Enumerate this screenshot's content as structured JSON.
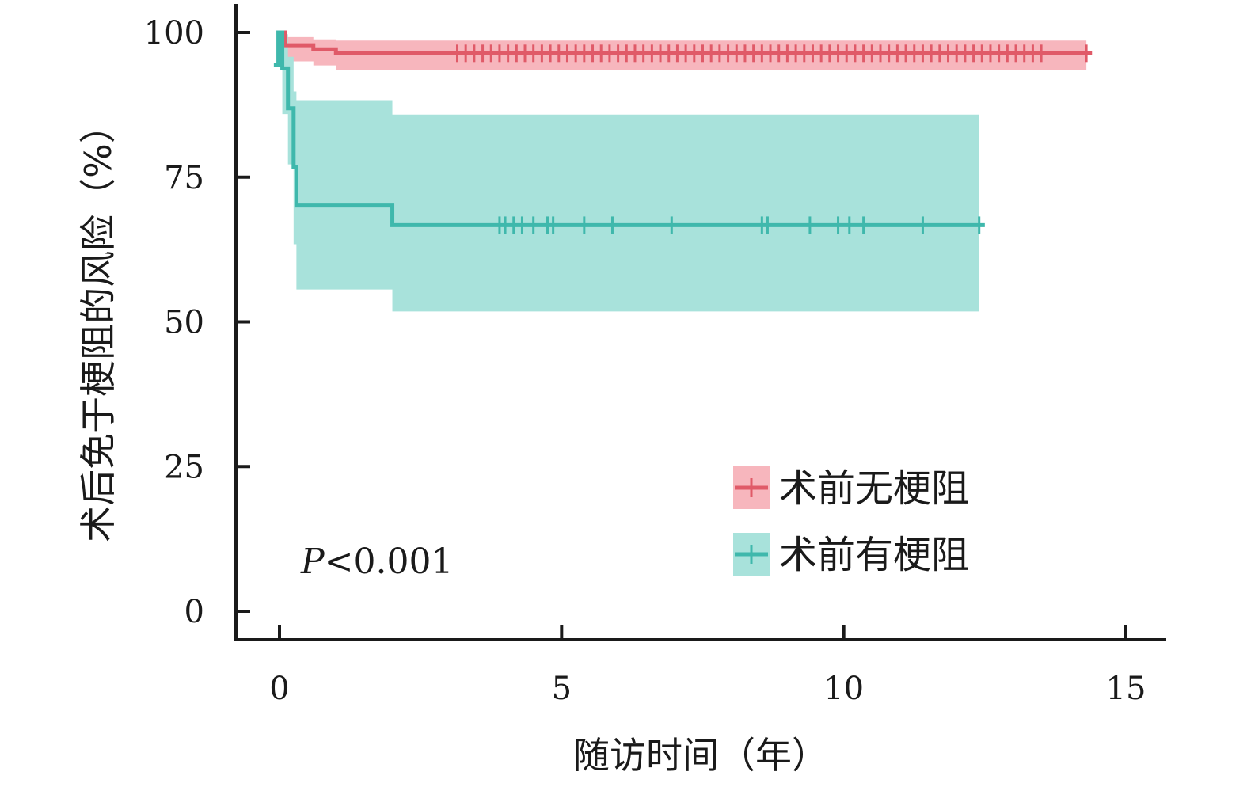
{
  "chart_data": {
    "type": "line",
    "subtype": "kaplan-meier",
    "title": "",
    "xlabel": "随访时间（年）",
    "ylabel": "术后免于梗阻的风险（%）",
    "xlim": [
      -0.7,
      15.7
    ],
    "ylim": [
      -5,
      105
    ],
    "xticks": [
      0,
      5,
      10,
      15
    ],
    "yticks": [
      0,
      25,
      50,
      75,
      100
    ],
    "grid": false,
    "legend_position": "bottom-right",
    "annotation": {
      "italic": "P",
      "rest": "<0.001"
    },
    "series": [
      {
        "name": "术前无梗阻",
        "line_color": "#e05a68",
        "band_color": "#f7b6bd",
        "steps": [
          [
            -0.05,
            100
          ],
          [
            0.1,
            97.8
          ],
          [
            0.6,
            97.1
          ],
          [
            1.0,
            96.4
          ],
          [
            14.4,
            96.4
          ]
        ],
        "ci": [
          [
            -0.05,
            100,
            100
          ],
          [
            0.1,
            95.0,
            99.2
          ],
          [
            0.6,
            94.3,
            98.8
          ],
          [
            1.0,
            93.5,
            98.6
          ],
          [
            14.3,
            93.5,
            98.6
          ]
        ],
        "censor_x": [
          3.15,
          3.3,
          3.45,
          3.6,
          3.75,
          3.9,
          4.05,
          4.2,
          4.35,
          4.5,
          4.65,
          4.8,
          4.95,
          5.1,
          5.25,
          5.4,
          5.55,
          5.7,
          5.85,
          6.0,
          6.15,
          6.3,
          6.45,
          6.6,
          6.75,
          6.9,
          7.05,
          7.2,
          7.35,
          7.5,
          7.65,
          7.8,
          7.95,
          8.1,
          8.25,
          8.4,
          8.55,
          8.7,
          8.85,
          9.0,
          9.15,
          9.3,
          9.45,
          9.6,
          9.75,
          9.9,
          10.05,
          10.2,
          10.35,
          10.5,
          10.65,
          10.8,
          10.95,
          11.1,
          11.25,
          11.4,
          11.55,
          11.7,
          11.85,
          12.0,
          12.15,
          12.3,
          12.45,
          12.6,
          12.75,
          12.9,
          13.05,
          13.2,
          13.35,
          13.5,
          14.3
        ]
      },
      {
        "name": "术前有梗阻",
        "line_color": "#3fb8ac",
        "band_color": "#a8e2db",
        "steps": [
          [
            -0.1,
            94.4
          ],
          [
            -0.02,
            100
          ],
          [
            0.05,
            93.8
          ],
          [
            0.15,
            86.9
          ],
          [
            0.25,
            76.8
          ],
          [
            0.3,
            70.1
          ],
          [
            2.0,
            66.7
          ],
          [
            12.5,
            66.7
          ]
        ],
        "ci": [
          [
            -0.05,
            100,
            100
          ],
          [
            0.05,
            85.9,
            99.7
          ],
          [
            0.15,
            77.2,
            95.8
          ],
          [
            0.25,
            63.4,
            89.8
          ],
          [
            0.3,
            55.6,
            88.3
          ],
          [
            2.0,
            51.8,
            85.8
          ],
          [
            12.4,
            51.8,
            85.8
          ]
        ],
        "censor_x": [
          3.9,
          4.0,
          4.15,
          4.3,
          4.5,
          4.75,
          4.85,
          5.4,
          5.9,
          6.95,
          8.55,
          8.65,
          9.4,
          9.9,
          10.1,
          10.35,
          11.4,
          12.4
        ]
      }
    ]
  }
}
